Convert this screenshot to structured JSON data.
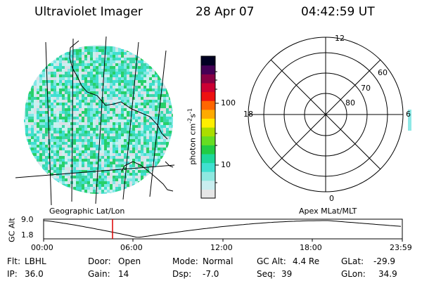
{
  "header": {
    "title": "Ultraviolet Imager",
    "date": "28 Apr 07",
    "time": "04:42:59 UT"
  },
  "colorbar": {
    "label": "photon cm",
    "label_sup1": "-2",
    "label_mid": "s",
    "label_sup2": "-1",
    "tick_labels": [
      "100",
      "10"
    ],
    "colors": [
      "#e6e6e6",
      "#c9eef0",
      "#8ee8e0",
      "#40e0d0",
      "#1ed89a",
      "#22cc44",
      "#66dd22",
      "#aadd00",
      "#ffee00",
      "#ffaa00",
      "#ff6600",
      "#ee1111",
      "#cc0033",
      "#880044",
      "#440055",
      "#000022"
    ]
  },
  "geo_panel": {
    "label": "Geographic Lat/Lon",
    "palette": [
      "#c8f0f0",
      "#7fe8e6",
      "#40e0d0",
      "#d9dfe6",
      "#3ad7a8",
      "#27d06a"
    ]
  },
  "polar_panel": {
    "label": "Apex MLat/MLT",
    "mlt_labels": {
      "top": "12",
      "left": "18",
      "right": "6",
      "bottom": "0"
    },
    "lat_labels": [
      "60",
      "70",
      "80"
    ]
  },
  "gc_plot": {
    "ylabel": "GC Alt",
    "y_ticks": [
      "9.0",
      "1.8"
    ],
    "x_ticks": [
      "00:00",
      "06:00",
      "12:00",
      "18:00",
      "23:59"
    ],
    "marker_color": "#dd0000"
  },
  "info": {
    "flt_label": "Flt:",
    "flt": "LBHL",
    "ip_label": "IP:",
    "ip": "36.0",
    "door_label": "Door:",
    "door": "Open",
    "gain_label": "Gain:",
    "gain": "14",
    "mode_label": "Mode:",
    "mode": "Normal",
    "dsp_label": "Dsp:",
    "dsp": "-7.0",
    "gcalt_label": "GC Alt:",
    "gcalt": "4.4 Re",
    "seq_label": "Seq:",
    "seq": "39",
    "glat_label": "GLat:",
    "glat": "-29.9",
    "glon_label": "GLon:",
    "glon": "34.9"
  }
}
